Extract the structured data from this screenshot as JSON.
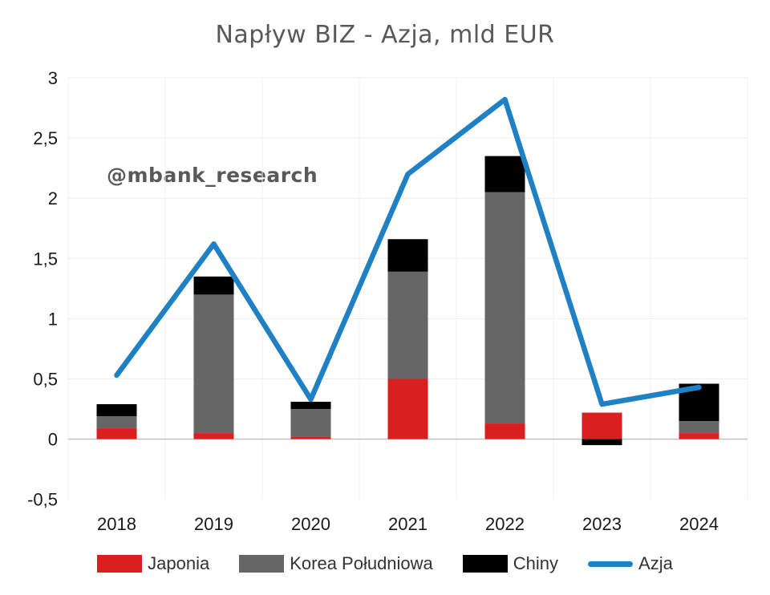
{
  "title": "Napływ BIZ - Azja, mld EUR",
  "watermark": "@mbank_research",
  "colors": {
    "japonia": "#d9201f",
    "korea": "#666666",
    "chiny": "#000000",
    "azja": "#1f80c4",
    "grid": "#ededed",
    "grid_vertical": "#f2f2f2",
    "zero_line": "#c2c2c2",
    "title_text": "#595959",
    "tick_text": "#1a1a1a"
  },
  "legend": [
    {
      "label": "Japonia",
      "color": "#d9201f",
      "type": "box"
    },
    {
      "label": "Korea Południowa",
      "color": "#666666",
      "type": "box"
    },
    {
      "label": "Chiny",
      "color": "#000000",
      "type": "box"
    },
    {
      "label": "Azja",
      "color": "#1f80c4",
      "type": "line"
    }
  ],
  "chart_data": {
    "type": "bar",
    "subtype": "stacked-bars-with-line-overlay",
    "title": "Napływ BIZ - Azja, mld EUR",
    "categories": [
      "2018",
      "2019",
      "2020",
      "2021",
      "2022",
      "2023",
      "2024"
    ],
    "series": [
      {
        "name": "Japonia",
        "type": "bar",
        "color": "#d9201f",
        "values": [
          0.09,
          0.05,
          0.02,
          0.5,
          0.13,
          0.22,
          0.05
        ]
      },
      {
        "name": "Korea Południowa",
        "type": "bar",
        "color": "#666666",
        "values": [
          0.1,
          1.15,
          0.23,
          0.89,
          1.92,
          0.0,
          0.1
        ]
      },
      {
        "name": "Chiny",
        "type": "bar",
        "color": "#000000",
        "values": [
          0.1,
          0.15,
          0.06,
          0.27,
          0.3,
          -0.05,
          0.31
        ]
      },
      {
        "name": "Azja",
        "type": "line",
        "color": "#1f80c4",
        "values": [
          0.53,
          1.62,
          0.33,
          2.2,
          2.82,
          0.29,
          0.43
        ]
      }
    ],
    "xlabel": "",
    "ylabel": "",
    "ylim": [
      -0.5,
      3
    ],
    "ytick_step": 0.5,
    "ytick_labels": [
      "-0,5",
      "0",
      "0,5",
      "1",
      "1,5",
      "2",
      "2,5",
      "3"
    ],
    "decimal_separator": ",",
    "grid": true,
    "legend_position": "bottom"
  }
}
